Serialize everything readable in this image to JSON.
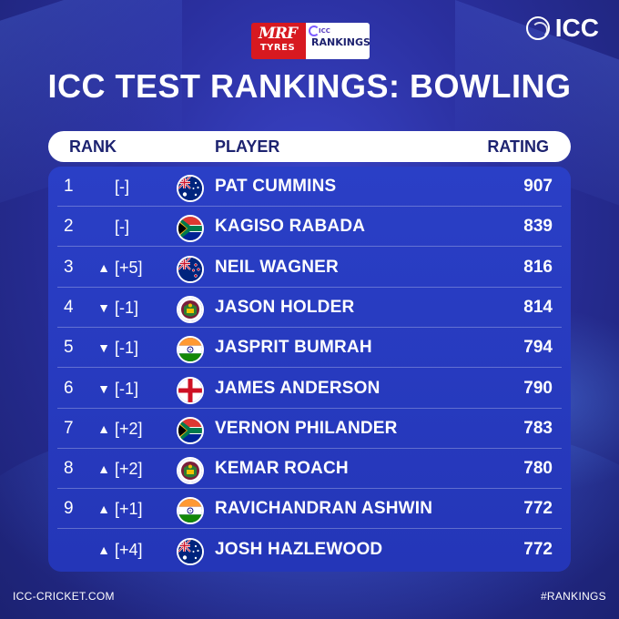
{
  "header": {
    "sponsor_top": "MRF",
    "sponsor_bottom": "TYRES",
    "rankings_small": "ICC",
    "rankings_big": "RANKINGS",
    "brand": "ICC",
    "title": "ICC TEST RANKINGS: BOWLING"
  },
  "table": {
    "columns": {
      "rank": "RANK",
      "player": "PLAYER",
      "rating": "RATING"
    },
    "rows": [
      {
        "rank": "1",
        "movement": "",
        "change": "[-]",
        "flag_icon": "australia-flag-icon",
        "player": "PAT CUMMINS",
        "rating": "907"
      },
      {
        "rank": "2",
        "movement": "",
        "change": "[-]",
        "flag_icon": "south-africa-flag-icon",
        "player": "KAGISO RABADA",
        "rating": "839"
      },
      {
        "rank": "3",
        "movement": "▲",
        "change": "[+5]",
        "flag_icon": "new-zealand-flag-icon",
        "player": "NEIL WAGNER",
        "rating": "816"
      },
      {
        "rank": "4",
        "movement": "▼",
        "change": "[-1]",
        "flag_icon": "west-indies-flag-icon",
        "player": "JASON HOLDER",
        "rating": "814"
      },
      {
        "rank": "5",
        "movement": "▼",
        "change": "[-1]",
        "flag_icon": "india-flag-icon",
        "player": "JASPRIT BUMRAH",
        "rating": "794"
      },
      {
        "rank": "6",
        "movement": "▼",
        "change": "[-1]",
        "flag_icon": "england-flag-icon",
        "player": "JAMES ANDERSON",
        "rating": "790"
      },
      {
        "rank": "7",
        "movement": "▲",
        "change": "[+2]",
        "flag_icon": "south-africa-flag-icon",
        "player": "VERNON PHILANDER",
        "rating": "783"
      },
      {
        "rank": "8",
        "movement": "▲",
        "change": "[+2]",
        "flag_icon": "west-indies-flag-icon",
        "player": "KEMAR ROACH",
        "rating": "780"
      },
      {
        "rank": "9",
        "movement": "▲",
        "change": "[+1]",
        "flag_icon": "india-flag-icon",
        "player": "RAVICHANDRAN ASHWIN",
        "rating": "772"
      },
      {
        "rank": "",
        "movement": "▲",
        "change": "[+4]",
        "flag_icon": "australia-flag-icon",
        "player": "JOSH HAZLEWOOD",
        "rating": "772"
      }
    ]
  },
  "footer": {
    "website": "ICC-CRICKET.COM",
    "hashtag": "#RANKINGS"
  },
  "colors": {
    "background": "#2a2f9e",
    "panel": "#2a3fc6",
    "header_text": "#1d2370",
    "accent_red": "#d71920"
  }
}
